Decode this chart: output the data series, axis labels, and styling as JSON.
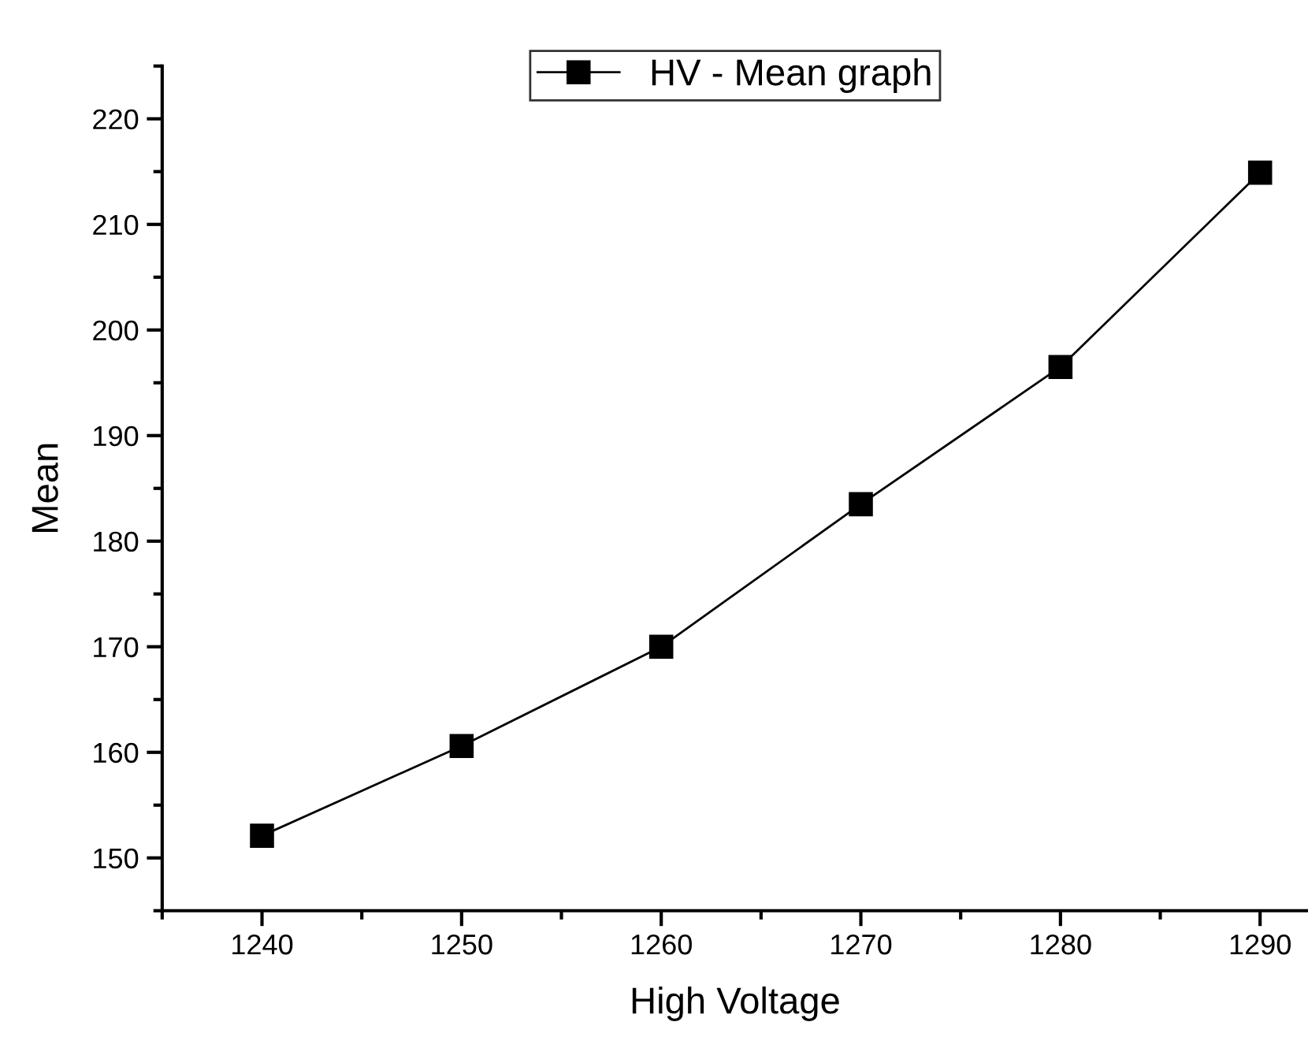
{
  "chart_data": {
    "type": "line",
    "xlabel": "High Voltage",
    "ylabel": "Mean",
    "x": [
      1240,
      1250,
      1260,
      1270,
      1280,
      1290
    ],
    "series": [
      {
        "name": "HV - Mean graph",
        "color": "#000000",
        "values": [
          152.1,
          160.6,
          170.0,
          183.5,
          196.5,
          214.9
        ]
      }
    ],
    "xlim": [
      1235,
      1292.4
    ],
    "ylim": [
      145,
      225
    ],
    "xticks": [
      1240,
      1250,
      1260,
      1270,
      1280,
      1290
    ],
    "yticks": [
      150,
      160,
      170,
      180,
      190,
      200,
      210,
      220
    ],
    "marker": "square",
    "line_style": "solid",
    "legend": "top",
    "grid": false
  }
}
